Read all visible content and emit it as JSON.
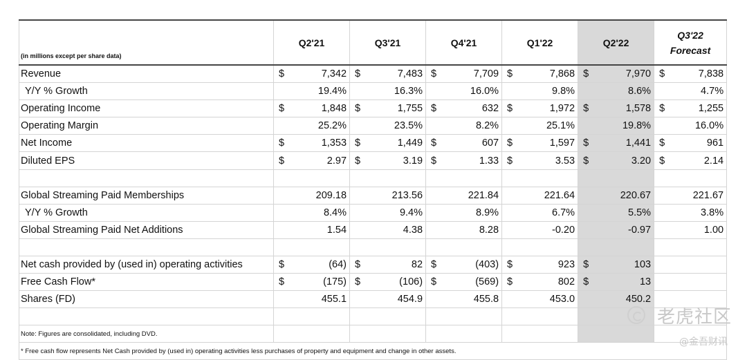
{
  "header": {
    "units_label": "(in millions except per share data)",
    "periods": [
      "Q2'21",
      "Q3'21",
      "Q4'21",
      "Q1'22",
      "Q2'22"
    ],
    "forecast_period": "Q3'22",
    "forecast_label": "Forecast"
  },
  "rows": [
    {
      "label": "Revenue",
      "indent": false,
      "dollar": true,
      "values": [
        "7,342",
        "7,483",
        "7,709",
        "7,868",
        "7,970",
        "7,838"
      ]
    },
    {
      "label": "Y/Y % Growth",
      "indent": true,
      "dollar": false,
      "values": [
        "19.4%",
        "16.3%",
        "16.0%",
        "9.8%",
        "8.6%",
        "4.7%"
      ]
    },
    {
      "label": "Operating Income",
      "indent": false,
      "dollar": true,
      "values": [
        "1,848",
        "1,755",
        "632",
        "1,972",
        "1,578",
        "1,255"
      ]
    },
    {
      "label": "Operating Margin",
      "indent": false,
      "dollar": false,
      "values": [
        "25.2%",
        "23.5%",
        "8.2%",
        "25.1%",
        "19.8%",
        "16.0%"
      ]
    },
    {
      "label": "Net Income",
      "indent": false,
      "dollar": true,
      "values": [
        "1,353",
        "1,449",
        "607",
        "1,597",
        "1,441",
        "961"
      ]
    },
    {
      "label": "Diluted EPS",
      "indent": false,
      "dollar": true,
      "values": [
        "2.97",
        "3.19",
        "1.33",
        "3.53",
        "3.20",
        "2.14"
      ]
    },
    {
      "spacer": true
    },
    {
      "label": "Global Streaming Paid Memberships",
      "indent": false,
      "dollar": false,
      "values": [
        "209.18",
        "213.56",
        "221.84",
        "221.64",
        "220.67",
        "221.67"
      ]
    },
    {
      "label": "Y/Y % Growth",
      "indent": true,
      "dollar": false,
      "values": [
        "8.4%",
        "9.4%",
        "8.9%",
        "6.7%",
        "5.5%",
        "3.8%"
      ]
    },
    {
      "label": "Global Streaming Paid Net Additions",
      "indent": false,
      "dollar": false,
      "values": [
        "1.54",
        "4.38",
        "8.28",
        "-0.20",
        "-0.97",
        "1.00"
      ]
    },
    {
      "spacer": true
    },
    {
      "label": "Net cash provided by (used in) operating activities",
      "indent": false,
      "dollar": true,
      "values": [
        "(64)",
        "82",
        "(403)",
        "923",
        "103",
        ""
      ]
    },
    {
      "label": "Free Cash Flow*",
      "indent": false,
      "dollar": true,
      "values": [
        "(175)",
        "(106)",
        "(569)",
        "802",
        "13",
        ""
      ]
    },
    {
      "label": "Shares (FD)",
      "indent": false,
      "dollar": false,
      "values": [
        "455.1",
        "454.9",
        "455.8",
        "453.0",
        "450.2",
        ""
      ]
    },
    {
      "spacer": true
    }
  ],
  "currency_symbol": "$",
  "note": "Note: Figures are consolidated, including DVD.",
  "footnote": "* Free cash flow represents Net Cash provided by (used in) operating activities less purchases of property and equipment and change in other assets.",
  "watermark": {
    "main": "老虎社区",
    "sub": "@金吾财讯"
  }
}
